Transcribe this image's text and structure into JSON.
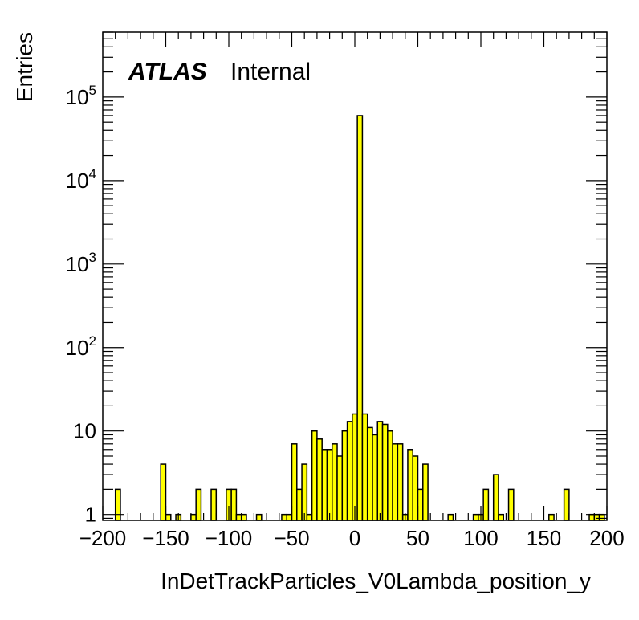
{
  "chart_data": {
    "type": "bar",
    "style": "histogram",
    "fill_color": "#ffff00",
    "line_color": "#000000",
    "xlabel": "InDetTrackParticles_V0Lambda_position_y",
    "ylabel": "Entries",
    "xlim": [
      -200,
      200
    ],
    "ylim": [
      0.85,
      600000
    ],
    "y_scale": "log",
    "bin_width": 4,
    "x_ticks": [
      "−200",
      "−150",
      "−100",
      "−50",
      "0",
      "50",
      "100",
      "150",
      "200"
    ],
    "y_ticks": [
      {
        "value": 1,
        "base": "1",
        "exp": ""
      },
      {
        "value": 10,
        "base": "10",
        "exp": ""
      },
      {
        "value": 100,
        "base": "10",
        "exp": "2"
      },
      {
        "value": 1000,
        "base": "10",
        "exp": "3"
      },
      {
        "value": 10000,
        "base": "10",
        "exp": "4"
      },
      {
        "value": 100000,
        "base": "10",
        "exp": "5"
      }
    ],
    "bins": [
      {
        "x": -188,
        "y": 2
      },
      {
        "x": -152,
        "y": 4
      },
      {
        "x": -148,
        "y": 1
      },
      {
        "x": -140,
        "y": 1
      },
      {
        "x": -128,
        "y": 1
      },
      {
        "x": -124,
        "y": 2
      },
      {
        "x": -112,
        "y": 2
      },
      {
        "x": -100,
        "y": 2
      },
      {
        "x": -96,
        "y": 2
      },
      {
        "x": -92,
        "y": 1
      },
      {
        "x": -88,
        "y": 1
      },
      {
        "x": -76,
        "y": 1
      },
      {
        "x": -56,
        "y": 1
      },
      {
        "x": -52,
        "y": 1
      },
      {
        "x": -48,
        "y": 7
      },
      {
        "x": -44,
        "y": 2
      },
      {
        "x": -40,
        "y": 4
      },
      {
        "x": -36,
        "y": 1
      },
      {
        "x": -32,
        "y": 10
      },
      {
        "x": -28,
        "y": 8
      },
      {
        "x": -24,
        "y": 6
      },
      {
        "x": -20,
        "y": 6
      },
      {
        "x": -16,
        "y": 7
      },
      {
        "x": -12,
        "y": 5
      },
      {
        "x": -8,
        "y": 10
      },
      {
        "x": -4,
        "y": 13
      },
      {
        "x": 0,
        "y": 16
      },
      {
        "x": 4,
        "y": 60000
      },
      {
        "x": 8,
        "y": 16
      },
      {
        "x": 12,
        "y": 11
      },
      {
        "x": 16,
        "y": 9
      },
      {
        "x": 20,
        "y": 13
      },
      {
        "x": 24,
        "y": 12
      },
      {
        "x": 28,
        "y": 10
      },
      {
        "x": 32,
        "y": 7
      },
      {
        "x": 36,
        "y": 7
      },
      {
        "x": 40,
        "y": 1
      },
      {
        "x": 44,
        "y": 6
      },
      {
        "x": 48,
        "y": 5
      },
      {
        "x": 52,
        "y": 2
      },
      {
        "x": 56,
        "y": 4
      },
      {
        "x": 76,
        "y": 1
      },
      {
        "x": 96,
        "y": 1
      },
      {
        "x": 100,
        "y": 1
      },
      {
        "x": 104,
        "y": 2
      },
      {
        "x": 112,
        "y": 3
      },
      {
        "x": 116,
        "y": 1
      },
      {
        "x": 124,
        "y": 2
      },
      {
        "x": 156,
        "y": 1
      },
      {
        "x": 168,
        "y": 2
      },
      {
        "x": 188,
        "y": 1
      },
      {
        "x": 192,
        "y": 1
      },
      {
        "x": 196,
        "y": 1
      }
    ]
  },
  "label": {
    "experiment": "ATLAS",
    "status": "Internal"
  }
}
